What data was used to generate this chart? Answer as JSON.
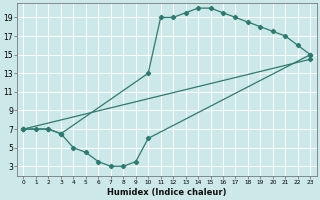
{
  "line1_x": [
    0,
    1,
    2,
    3,
    10,
    11,
    12,
    13,
    14,
    15,
    16,
    17,
    18,
    19,
    20,
    21,
    22,
    23
  ],
  "line1_y": [
    7,
    7,
    7,
    6.5,
    13,
    19,
    19,
    19.5,
    20,
    20,
    19.5,
    19,
    18.5,
    18,
    17.5,
    17,
    16,
    15
  ],
  "line2_x": [
    0,
    2,
    3,
    4,
    5,
    6,
    7,
    8,
    9,
    10,
    23
  ],
  "line2_y": [
    7,
    7,
    6.5,
    5,
    4.5,
    3.5,
    3,
    3,
    3.5,
    6,
    15
  ],
  "line3_x": [
    0,
    23
  ],
  "line3_y": [
    7,
    14.5
  ],
  "color": "#2d7a6f",
  "bg_color": "#cce8e8",
  "grid_color": "#ffffff",
  "xlabel": "Humidex (Indice chaleur)",
  "xlim": [
    -0.5,
    23.5
  ],
  "ylim": [
    2,
    20.5
  ],
  "xticks": [
    0,
    1,
    2,
    3,
    4,
    5,
    6,
    7,
    8,
    9,
    10,
    11,
    12,
    13,
    14,
    15,
    16,
    17,
    18,
    19,
    20,
    21,
    22,
    23
  ],
  "yticks": [
    3,
    5,
    7,
    9,
    11,
    13,
    15,
    17,
    19
  ],
  "label_fontsize": 6,
  "tick_fontsize": 5.5
}
